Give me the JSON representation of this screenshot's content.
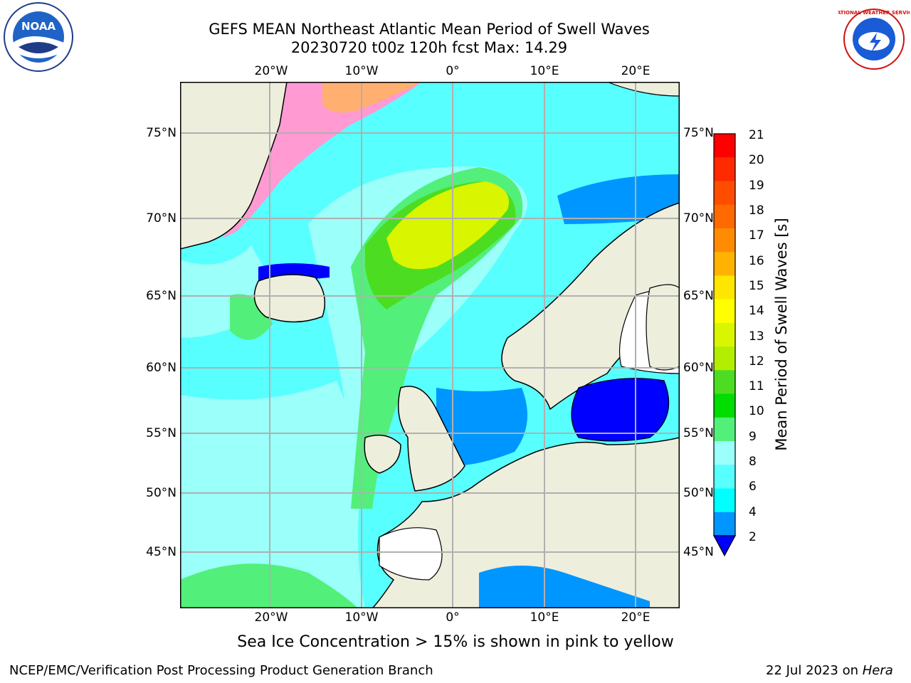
{
  "header": {
    "title_line1": "GEFS MEAN Northeast Atlantic Mean Period of Swell Waves",
    "title_line2": "20230720 t00z 120h fcst   Max: 14.29"
  },
  "logos": {
    "left_text": "NOAA",
    "right_text": "NATIONAL WEATHER SERVICE"
  },
  "map": {
    "lon_labels": [
      "20°W",
      "10°W",
      "0°",
      "10°E",
      "20°E"
    ],
    "lat_labels": [
      "75°N",
      "70°N",
      "65°N",
      "60°N",
      "55°N",
      "50°N",
      "45°N"
    ]
  },
  "colorbar": {
    "label": "Mean Period of Swell Waves [s]",
    "ticks": [
      "21",
      "20",
      "19",
      "18",
      "17",
      "16",
      "15",
      "14",
      "13",
      "12",
      "11",
      "10",
      "9",
      "8",
      "6",
      "4",
      "2"
    ],
    "colors": [
      "#ff0000",
      "#ff2a00",
      "#ff4d00",
      "#ff6a00",
      "#ff8c00",
      "#ffb300",
      "#ffe600",
      "#ffff00",
      "#d9f500",
      "#b3ee00",
      "#4cdd22",
      "#00dd00",
      "#52f07a",
      "#9bfffa",
      "#58ffff",
      "#00ffff",
      "#0096ff",
      "#0000ff"
    ]
  },
  "caption": "Sea Ice Concentration > 15% is shown in pink to yellow",
  "footer": {
    "left": "NCEP/EMC/Verification Post Processing Product Generation Branch",
    "right_date": "22 Jul 2023 on ",
    "right_machine": "Hera"
  }
}
